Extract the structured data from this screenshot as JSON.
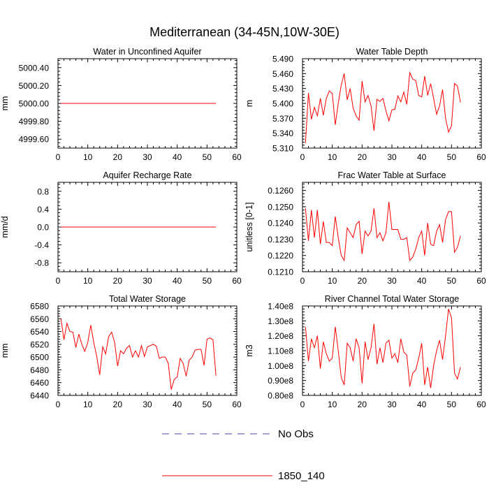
{
  "title": "Mediterranean (34-45N,10W-30E)",
  "legend": {
    "items": [
      {
        "label": "No Obs",
        "color": "#4444aa",
        "style": "dashed"
      },
      {
        "label": "1850_140",
        "color": "#ff0000",
        "style": "solid"
      }
    ]
  },
  "chart_data": [
    {
      "type": "line",
      "title": "Water in Unconfined Aquifer",
      "xlabel": "",
      "ylabel": "mm",
      "xlim": [
        0,
        60
      ],
      "ylim": [
        4999.5,
        5000.5
      ],
      "xticks": [
        0,
        10,
        20,
        30,
        40,
        50,
        60
      ],
      "xtick_labels": [
        "0",
        "10",
        "20",
        "30",
        "40",
        "50",
        "60"
      ],
      "yticks": [
        4999.6,
        4999.8,
        5000.0,
        5000.2,
        5000.4
      ],
      "ytick_labels": [
        "4999.60",
        "4999.80",
        "5000.00",
        "5000.20",
        "5000.40"
      ],
      "series": [
        {
          "name": "1850_140",
          "x": [
            1,
            53
          ],
          "values": [
            5000.0,
            5000.0
          ]
        }
      ]
    },
    {
      "type": "line",
      "title": "Water Table Depth",
      "xlabel": "",
      "ylabel": "m",
      "xlim": [
        0,
        60
      ],
      "ylim": [
        5.31,
        5.49
      ],
      "xticks": [
        0,
        10,
        20,
        30,
        40,
        50,
        60
      ],
      "xtick_labels": [
        "0",
        "10",
        "20",
        "30",
        "40",
        "50",
        "60"
      ],
      "yticks": [
        5.31,
        5.34,
        5.37,
        5.4,
        5.43,
        5.46,
        5.49
      ],
      "ytick_labels": [
        "5.310",
        "5.340",
        "5.370",
        "5.400",
        "5.430",
        "5.460",
        "5.490"
      ],
      "series": [
        {
          "name": "1850_140",
          "x": [
            1,
            2,
            3,
            4,
            5,
            6,
            7,
            8,
            9,
            10,
            11,
            12,
            13,
            14,
            15,
            16,
            17,
            18,
            19,
            20,
            21,
            22,
            23,
            24,
            25,
            26,
            27,
            28,
            29,
            30,
            31,
            32,
            33,
            34,
            35,
            36,
            37,
            38,
            39,
            40,
            41,
            42,
            43,
            44,
            45,
            46,
            47,
            48,
            49,
            50,
            51,
            52,
            53
          ],
          "values": [
            5.32,
            5.421,
            5.368,
            5.392,
            5.375,
            5.41,
            5.376,
            5.41,
            5.425,
            5.42,
            5.357,
            5.4,
            5.437,
            5.46,
            5.407,
            5.43,
            5.39,
            5.375,
            5.366,
            5.445,
            5.403,
            5.416,
            5.395,
            5.345,
            5.408,
            5.404,
            5.41,
            5.385,
            5.365,
            5.387,
            5.388,
            5.415,
            5.403,
            5.423,
            5.398,
            5.462,
            5.449,
            5.446,
            5.416,
            5.413,
            5.455,
            5.416,
            5.44,
            5.41,
            5.378,
            5.395,
            5.428,
            5.37,
            5.342,
            5.355,
            5.44,
            5.435,
            5.402
          ]
        }
      ]
    },
    {
      "type": "line",
      "title": "Aquifer Recharge Rate",
      "xlabel": "",
      "ylabel": "mm/d",
      "xlim": [
        0,
        60
      ],
      "ylim": [
        -1,
        1
      ],
      "xticks": [
        0,
        10,
        20,
        30,
        40,
        50,
        60
      ],
      "xtick_labels": [
        "0",
        "10",
        "20",
        "30",
        "40",
        "50",
        "60"
      ],
      "yticks": [
        -0.8,
        -0.4,
        0,
        0.4,
        0.8
      ],
      "ytick_labels": [
        "-0.8",
        "-0.4",
        "0.0",
        "0.4",
        "0.8"
      ],
      "series": [
        {
          "name": "1850_140",
          "x": [
            1,
            53
          ],
          "values": [
            0,
            0
          ]
        }
      ]
    },
    {
      "type": "line",
      "title": "Frac Water Table at Surface",
      "xlabel": "",
      "ylabel": "unitless [0-1]",
      "xlim": [
        0,
        60
      ],
      "ylim": [
        0.121,
        0.1265
      ],
      "xticks": [
        0,
        10,
        20,
        30,
        40,
        50,
        60
      ],
      "xtick_labels": [
        "0",
        "10",
        "20",
        "30",
        "40",
        "50",
        "60"
      ],
      "yticks": [
        0.121,
        0.122,
        0.123,
        0.124,
        0.125,
        0.126
      ],
      "ytick_labels": [
        "0.1210",
        "0.1220",
        "0.1230",
        "0.1240",
        "0.1250",
        "0.1260"
      ],
      "series": [
        {
          "name": "1850_140",
          "x": [
            1,
            2,
            3,
            4,
            5,
            6,
            7,
            8,
            9,
            10,
            11,
            12,
            13,
            14,
            15,
            16,
            17,
            18,
            19,
            20,
            21,
            22,
            23,
            24,
            25,
            26,
            27,
            28,
            29,
            30,
            31,
            32,
            33,
            34,
            35,
            36,
            37,
            38,
            39,
            40,
            41,
            42,
            43,
            44,
            45,
            46,
            47,
            48,
            49,
            50,
            51,
            52,
            53
          ],
          "values": [
            0.1249,
            0.1229,
            0.1248,
            0.1231,
            0.1248,
            0.1227,
            0.1241,
            0.1228,
            0.1228,
            0.1226,
            0.1244,
            0.1231,
            0.122,
            0.1217,
            0.1237,
            0.1234,
            0.1231,
            0.1239,
            0.1241,
            0.1221,
            0.1235,
            0.1232,
            0.1235,
            0.1249,
            0.1231,
            0.1234,
            0.1229,
            0.1234,
            0.1253,
            0.1236,
            0.1236,
            0.1236,
            0.123,
            0.123,
            0.1231,
            0.1217,
            0.1219,
            0.1224,
            0.1231,
            0.1235,
            0.122,
            0.124,
            0.1227,
            0.1226,
            0.1235,
            0.1239,
            0.1228,
            0.1242,
            0.1247,
            0.1247,
            0.1222,
            0.1225,
            0.1232
          ]
        }
      ]
    },
    {
      "type": "line",
      "title": "Total Water Storage",
      "xlabel": "",
      "ylabel": "mm",
      "xlim": [
        0,
        60
      ],
      "ylim": [
        6440,
        6580
      ],
      "xticks": [
        0,
        10,
        20,
        30,
        40,
        50,
        60
      ],
      "xtick_labels": [
        "0",
        "10",
        "20",
        "30",
        "40",
        "50",
        "60"
      ],
      "yticks": [
        6440,
        6460,
        6480,
        6500,
        6520,
        6540,
        6560,
        6580
      ],
      "ytick_labels": [
        "6440",
        "6460",
        "6480",
        "6500",
        "6520",
        "6540",
        "6560",
        "6580"
      ],
      "series": [
        {
          "name": "1850_140",
          "x": [
            1,
            2,
            3,
            4,
            5,
            6,
            7,
            8,
            9,
            10,
            11,
            12,
            13,
            14,
            15,
            16,
            17,
            18,
            19,
            20,
            21,
            22,
            23,
            24,
            25,
            26,
            27,
            28,
            29,
            30,
            31,
            32,
            33,
            34,
            35,
            36,
            37,
            38,
            39,
            40,
            41,
            42,
            43,
            44,
            45,
            46,
            47,
            48,
            49,
            50,
            51,
            52,
            53
          ],
          "values": [
            6560,
            6527,
            6553,
            6540,
            6539,
            6515,
            6536,
            6520,
            6509,
            6523,
            6550,
            6523,
            6501,
            6472,
            6516,
            6505,
            6532,
            6539,
            6523,
            6486,
            6510,
            6505,
            6514,
            6518,
            6500,
            6510,
            6500,
            6518,
            6501,
            6516,
            6518,
            6520,
            6517,
            6498,
            6500,
            6500,
            6490,
            6449,
            6465,
            6469,
            6498,
            6490,
            6470,
            6495,
            6500,
            6511,
            6512,
            6512,
            6487,
            6528,
            6530,
            6527,
            6471
          ]
        }
      ]
    },
    {
      "type": "line",
      "title": "River Channel Total Water Storage",
      "xlabel": "",
      "ylabel": "m3",
      "xlim": [
        0,
        60
      ],
      "ylim": [
        80000000,
        140000000
      ],
      "xticks": [
        0,
        10,
        20,
        30,
        40,
        50,
        60
      ],
      "xtick_labels": [
        "0",
        "10",
        "20",
        "30",
        "40",
        "50",
        "60"
      ],
      "yticks": [
        80000000,
        90000000,
        100000000,
        110000000,
        120000000,
        130000000,
        140000000
      ],
      "ytick_labels": [
        "0.80e8",
        "0.90e8",
        "1.00e8",
        "1.10e8",
        "1.20e8",
        "1.30e8",
        "1.40e8"
      ],
      "series": [
        {
          "name": "1850_140",
          "x": [
            1,
            2,
            3,
            4,
            5,
            6,
            7,
            8,
            9,
            10,
            11,
            12,
            13,
            14,
            15,
            16,
            17,
            18,
            19,
            20,
            21,
            22,
            23,
            24,
            25,
            26,
            27,
            28,
            29,
            30,
            31,
            32,
            33,
            34,
            35,
            36,
            37,
            38,
            39,
            40,
            41,
            42,
            43,
            44,
            45,
            46,
            47,
            48,
            49,
            50,
            51,
            52,
            53
          ],
          "values": [
            126000000,
            103000000,
            118000000,
            112000000,
            120000000,
            98000000,
            116000000,
            108000000,
            103000000,
            105000000,
            126000000,
            110000000,
            92000000,
            87000000,
            115000000,
            112000000,
            103000000,
            118000000,
            112000000,
            88000000,
            116000000,
            104000000,
            112000000,
            128000000,
            101000000,
            112000000,
            102000000,
            115000000,
            117000000,
            105000000,
            108000000,
            102000000,
            118000000,
            109000000,
            107000000,
            86000000,
            95000000,
            97000000,
            105000000,
            115000000,
            87000000,
            99000000,
            85000000,
            100000000,
            110000000,
            117000000,
            104000000,
            120000000,
            138000000,
            132000000,
            95000000,
            91000000,
            99000000
          ]
        }
      ]
    }
  ]
}
